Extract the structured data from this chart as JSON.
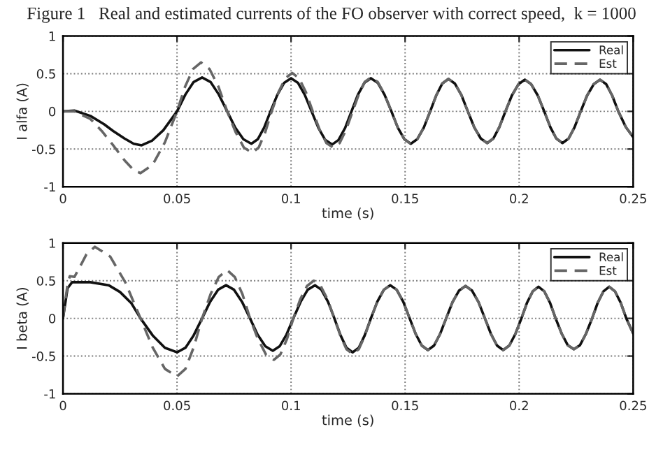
{
  "chart_data": [
    {
      "type": "line",
      "title": "Figure 1   Real and estimated currents of the FO observer with correct speed,  k = 1000",
      "xlabel": "time (s)",
      "ylabel": "I alfa (A)",
      "xlim": [
        0,
        0.25
      ],
      "ylim": [
        -1,
        1
      ],
      "xticks": [
        0,
        0.05,
        0.1,
        0.15,
        0.2,
        0.25
      ],
      "yticks": [
        -1,
        -0.5,
        0,
        0.5,
        1
      ],
      "grid": true,
      "legend": "top right",
      "series": [
        {
          "name": "Real",
          "color": "#111111",
          "line_style": "solid",
          "x": [
            0,
            0.005,
            0.012,
            0.018,
            0.022,
            0.027,
            0.031,
            0.0345,
            0.039,
            0.044,
            0.05,
            0.0537,
            0.0573,
            0.061,
            0.0647,
            0.0683,
            0.072,
            0.0755,
            0.0791,
            0.0826,
            0.0854,
            0.0882,
            0.091,
            0.094,
            0.097,
            0.1,
            0.103,
            0.106,
            0.109,
            0.112,
            0.115,
            0.118,
            0.1208,
            0.1237,
            0.1265,
            0.1293,
            0.1322,
            0.135,
            0.138,
            0.141,
            0.144,
            0.1468,
            0.1497,
            0.1525,
            0.1553,
            0.1582,
            0.161,
            0.1637,
            0.1663,
            0.169,
            0.1718,
            0.1747,
            0.1775,
            0.1803,
            0.1832,
            0.186,
            0.1887,
            0.1913,
            0.194,
            0.1968,
            0.1997,
            0.2025,
            0.2053,
            0.2082,
            0.211,
            0.2137,
            0.2163,
            0.219,
            0.2217,
            0.2243,
            0.227,
            0.2298,
            0.2327,
            0.2355,
            0.2382,
            0.2408,
            0.2435,
            0.2468,
            0.25
          ],
          "values": [
            0,
            0.01,
            -0.06,
            -0.17,
            -0.26,
            -0.36,
            -0.43,
            -0.45,
            -0.39,
            -0.25,
            0,
            0.225,
            0.39,
            0.45,
            0.39,
            0.225,
            0,
            -0.215,
            -0.37,
            -0.43,
            -0.37,
            -0.215,
            0,
            0.22,
            0.38,
            0.44,
            0.38,
            0.22,
            0,
            -0.22,
            -0.38,
            -0.44,
            -0.38,
            -0.22,
            0,
            0.22,
            0.38,
            0.44,
            0.38,
            0.22,
            0,
            -0.215,
            -0.37,
            -0.43,
            -0.37,
            -0.215,
            0,
            0.215,
            0.37,
            0.43,
            0.37,
            0.215,
            0,
            -0.21,
            -0.36,
            -0.42,
            -0.36,
            -0.21,
            0,
            0.21,
            0.36,
            0.42,
            0.36,
            0.21,
            0,
            -0.21,
            -0.36,
            -0.42,
            -0.36,
            -0.21,
            0,
            0.21,
            0.36,
            0.42,
            0.36,
            0.21,
            0,
            -0.21,
            -0.34
          ]
        },
        {
          "name": "Est",
          "color": "#666666",
          "line_style": "dashed",
          "x": [
            0,
            0.005,
            0.012,
            0.017,
            0.022,
            0.027,
            0.031,
            0.034,
            0.0393,
            0.0447,
            0.05,
            0.0535,
            0.057,
            0.0605,
            0.0643,
            0.0682,
            0.072,
            0.0757,
            0.0793,
            0.083,
            0.0858,
            0.0887,
            0.0915,
            0.0945,
            0.0975,
            0.1005,
            0.1035,
            0.1065,
            0.1095,
            0.1125,
            0.1155,
            0.1185,
            0.1213,
            0.1242,
            0.127,
            0.1297,
            0.1323,
            0.135,
            0.138,
            0.141,
            0.144,
            0.1468,
            0.1497,
            0.1525,
            0.1553,
            0.1582,
            0.161,
            0.1637,
            0.1663,
            0.169,
            0.1718,
            0.1747,
            0.1775,
            0.1803,
            0.1832,
            0.186,
            0.1887,
            0.1913,
            0.194,
            0.1968,
            0.1997,
            0.2025,
            0.2053,
            0.2082,
            0.211,
            0.2137,
            0.2163,
            0.219,
            0.2217,
            0.2243,
            0.227,
            0.2298,
            0.2327,
            0.2355,
            0.2382,
            0.2408,
            0.2435,
            0.2468,
            0.25
          ],
          "values": [
            0,
            0,
            -0.1,
            -0.26,
            -0.45,
            -0.65,
            -0.78,
            -0.82,
            -0.71,
            -0.41,
            0,
            0.325,
            0.56,
            0.65,
            0.56,
            0.325,
            0,
            -0.275,
            -0.48,
            -0.55,
            -0.48,
            -0.275,
            0,
            0.255,
            0.44,
            0.51,
            0.44,
            0.255,
            0,
            -0.24,
            -0.42,
            -0.48,
            -0.42,
            -0.24,
            0,
            0.225,
            0.39,
            0.45,
            0.39,
            0.225,
            0,
            -0.215,
            -0.37,
            -0.43,
            -0.37,
            -0.215,
            0,
            0.215,
            0.37,
            0.43,
            0.37,
            0.215,
            0,
            -0.21,
            -0.36,
            -0.42,
            -0.36,
            -0.21,
            0,
            0.21,
            0.36,
            0.42,
            0.36,
            0.21,
            0,
            -0.21,
            -0.36,
            -0.42,
            -0.36,
            -0.21,
            0,
            0.21,
            0.36,
            0.42,
            0.36,
            0.21,
            0,
            -0.21,
            -0.34
          ]
        }
      ]
    },
    {
      "type": "line",
      "xlabel": "time (s)",
      "ylabel": "I beta (A)",
      "xlim": [
        0,
        0.25
      ],
      "ylim": [
        -1,
        1
      ],
      "xticks": [
        0,
        0.05,
        0.1,
        0.15,
        0.2,
        0.25
      ],
      "yticks": [
        -1,
        -0.5,
        0,
        0.5,
        1
      ],
      "grid": true,
      "legend": "top right",
      "series": [
        {
          "name": "Real",
          "color": "#111111",
          "line_style": "solid",
          "x": [
            0,
            0.002,
            0.004,
            0.012,
            0.02,
            0.025,
            0.03,
            0.034,
            0.0393,
            0.0447,
            0.05,
            0.0537,
            0.0573,
            0.061,
            0.0645,
            0.068,
            0.0715,
            0.075,
            0.0785,
            0.082,
            0.0853,
            0.0887,
            0.092,
            0.095,
            0.098,
            0.101,
            0.1042,
            0.1073,
            0.1105,
            0.1133,
            0.1162,
            0.119,
            0.1217,
            0.1243,
            0.127,
            0.1297,
            0.1323,
            0.135,
            0.1378,
            0.1407,
            0.1435,
            0.1463,
            0.1492,
            0.152,
            0.1547,
            0.1573,
            0.16,
            0.1627,
            0.1653,
            0.168,
            0.1708,
            0.1737,
            0.1765,
            0.1793,
            0.1822,
            0.185,
            0.1877,
            0.1903,
            0.193,
            0.1957,
            0.1983,
            0.201,
            0.2035,
            0.206,
            0.2085,
            0.211,
            0.2135,
            0.216,
            0.2187,
            0.2213,
            0.224,
            0.2267,
            0.2293,
            0.232,
            0.2345,
            0.237,
            0.2395,
            0.242,
            0.2445,
            0.247,
            0.25
          ],
          "values": [
            0,
            0.4,
            0.48,
            0.48,
            0.44,
            0.35,
            0.2,
            0,
            -0.225,
            -0.39,
            -0.45,
            -0.39,
            -0.225,
            0,
            0.22,
            0.38,
            0.44,
            0.38,
            0.22,
            0,
            -0.215,
            -0.37,
            -0.43,
            -0.37,
            -0.215,
            0,
            0.22,
            0.38,
            0.44,
            0.38,
            0.22,
            0,
            -0.225,
            -0.39,
            -0.45,
            -0.39,
            -0.225,
            0,
            0.22,
            0.38,
            0.44,
            0.38,
            0.22,
            0,
            -0.21,
            -0.36,
            -0.42,
            -0.36,
            -0.21,
            0,
            0.215,
            0.37,
            0.43,
            0.37,
            0.215,
            0,
            -0.21,
            -0.36,
            -0.42,
            -0.36,
            -0.21,
            0,
            0.21,
            0.36,
            0.42,
            0.36,
            0.21,
            0,
            -0.205,
            -0.355,
            -0.41,
            -0.355,
            -0.205,
            0,
            0.21,
            0.36,
            0.42,
            0.36,
            0.21,
            0,
            -0.2
          ]
        },
        {
          "name": "Est",
          "color": "#666666",
          "line_style": "dashed",
          "x": [
            0,
            0.002,
            0.003,
            0.005,
            0.0077,
            0.0103,
            0.014,
            0.0207,
            0.0273,
            0.034,
            0.0393,
            0.0447,
            0.05,
            0.0537,
            0.0573,
            0.061,
            0.0647,
            0.0683,
            0.072,
            0.0753,
            0.0787,
            0.082,
            0.0855,
            0.089,
            0.0925,
            0.0953,
            0.0982,
            0.101,
            0.104,
            0.107,
            0.11,
            0.113,
            0.116,
            0.119,
            0.1217,
            0.1243,
            0.127,
            0.1297,
            0.1323,
            0.135,
            0.1378,
            0.1407,
            0.1435,
            0.1463,
            0.1492,
            0.152,
            0.1547,
            0.1573,
            0.16,
            0.1627,
            0.1653,
            0.168,
            0.1708,
            0.1737,
            0.1765,
            0.1793,
            0.1822,
            0.185,
            0.1877,
            0.1903,
            0.193,
            0.1957,
            0.1983,
            0.201,
            0.2035,
            0.206,
            0.2085,
            0.211,
            0.2135,
            0.216,
            0.2187,
            0.2213,
            0.224,
            0.2267,
            0.2293,
            0.232,
            0.2345,
            0.237,
            0.2395,
            0.242,
            0.2445,
            0.247,
            0.25
          ],
          "values": [
            0,
            0.45,
            0.56,
            0.55,
            0.7,
            0.85,
            0.95,
            0.82,
            0.48,
            0,
            -0.385,
            -0.67,
            -0.77,
            -0.67,
            -0.385,
            0,
            0.32,
            0.55,
            0.64,
            0.55,
            0.32,
            0,
            -0.275,
            -0.48,
            -0.55,
            -0.48,
            -0.275,
            0,
            0.25,
            0.43,
            0.5,
            0.43,
            0.25,
            0,
            -0.235,
            -0.41,
            -0.47,
            -0.41,
            -0.235,
            0,
            0.22,
            0.38,
            0.44,
            0.38,
            0.22,
            0,
            -0.21,
            -0.36,
            -0.42,
            -0.36,
            -0.21,
            0,
            0.215,
            0.37,
            0.43,
            0.37,
            0.215,
            0,
            -0.21,
            -0.36,
            -0.42,
            -0.36,
            -0.21,
            0,
            0.21,
            0.36,
            0.42,
            0.36,
            0.21,
            0,
            -0.205,
            -0.355,
            -0.41,
            -0.355,
            -0.205,
            0,
            0.21,
            0.36,
            0.42,
            0.36,
            0.21,
            0,
            -0.2
          ]
        }
      ]
    }
  ]
}
